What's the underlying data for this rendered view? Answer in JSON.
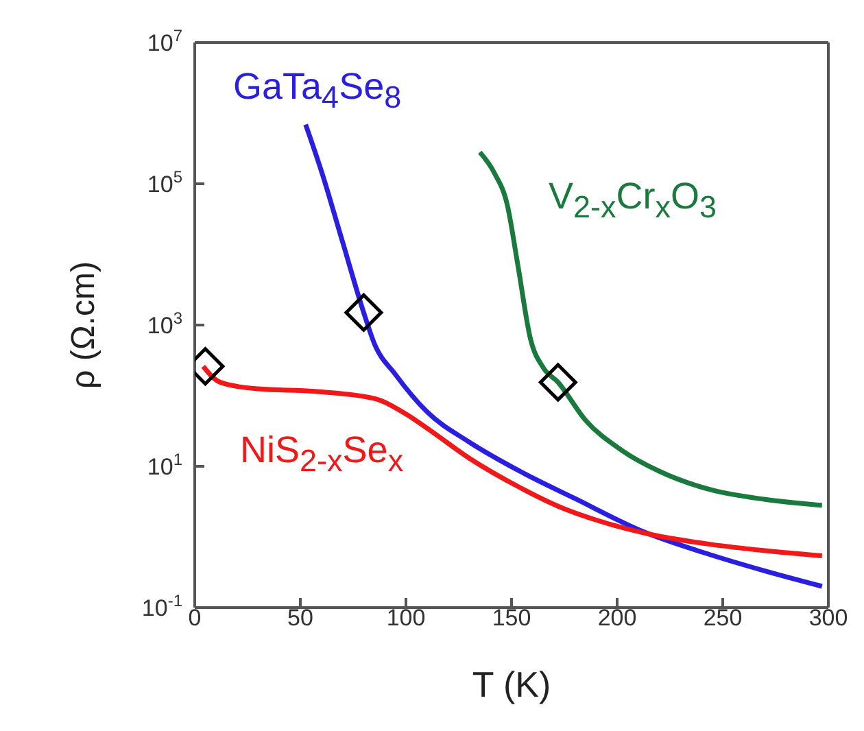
{
  "chart_data": {
    "type": "line",
    "xlabel": "T (K)",
    "ylabel": "ρ (Ω.cm)",
    "log": "y",
    "xlim": [
      0,
      300
    ],
    "xticks": [
      0,
      50,
      100,
      150,
      200,
      250,
      300
    ],
    "ylim": [
      0.1,
      10000000
    ],
    "yticks": [
      {
        "value": 0.1,
        "label": "10$^{-1}$"
      },
      {
        "value": 10,
        "label": "10$^{1}$"
      },
      {
        "value": 1000,
        "label": "10$^{3}$"
      },
      {
        "value": 100000,
        "label": "10$^{5}$"
      },
      {
        "value": 10000000,
        "label": "10$^{7}$"
      }
    ],
    "marker": "none",
    "line_style": "solid",
    "series": [
      {
        "name": "GaTa$_{4}$Se$_{8}$",
        "color": "#2a1fe0",
        "x": [
          52.5,
          60,
          70,
          80,
          85,
          95,
          110,
          130,
          154,
          180,
          212,
          245,
          270,
          297
        ],
        "values": [
          690000,
          150000,
          15000,
          1500,
          550,
          200,
          59,
          22,
          8.5,
          3.5,
          1.2,
          0.55,
          0.33,
          0.2
        ]
      },
      {
        "name": "V$_{2-x}$Cr$_{x}$O$_{3}$",
        "color": "#1a7a3e",
        "x": [
          135,
          142,
          148,
          153,
          159,
          165,
          172,
          185,
          202,
          220,
          245,
          270,
          297
        ],
        "values": [
          280000,
          140000,
          50000,
          7000,
          630,
          250,
          155,
          45,
          17,
          8.5,
          4.6,
          3.4,
          2.8
        ]
      },
      {
        "name": "NiS$_{2-x}$Se$_{x}$",
        "color": "#f01818",
        "x": [
          4,
          12,
          30,
          57,
          85,
          100,
          111,
          130,
          154,
          175,
          191,
          215,
          245,
          270,
          297
        ],
        "values": [
          260,
          155,
          125,
          115,
          91,
          55,
          33,
          13,
          5,
          2.5,
          1.7,
          1.1,
          0.78,
          0.64,
          0.54
        ]
      },
      {
        "type": "scatter",
        "marker": "diamond",
        "color": "#000000",
        "x": [
          5,
          80,
          172
        ],
        "values": [
          260,
          1500,
          155
        ]
      }
    ]
  }
}
